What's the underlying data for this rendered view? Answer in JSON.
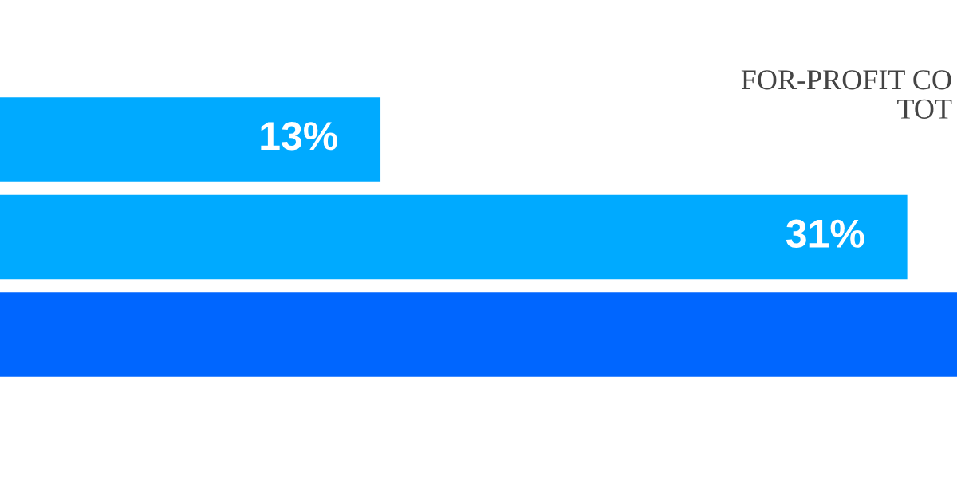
{
  "chart_data": {
    "type": "bar",
    "orientation": "horizontal",
    "title": "FOR-PROFIT CO\nTOT",
    "categories": [
      null,
      null,
      null
    ],
    "values": [
      13,
      31,
      32.7
    ],
    "colors": [
      "#00aaff",
      "#00aaff",
      "#0066ff"
    ],
    "value_labels": [
      "13%",
      "31%",
      null
    ],
    "xlim": [
      0,
      32.7
    ],
    "grid": false,
    "legend": false
  }
}
